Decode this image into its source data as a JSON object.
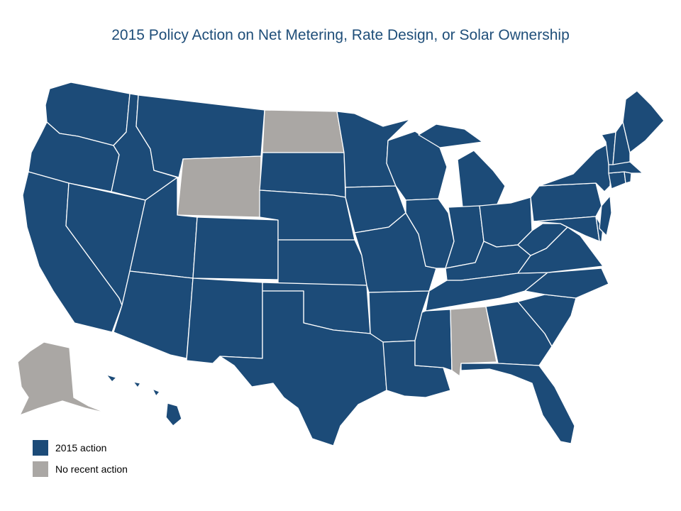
{
  "title": "2015 Policy Action on Net Metering, Rate Design, or Solar Ownership",
  "legend": {
    "items": [
      {
        "label": "2015 action",
        "color": "#1c4b78"
      },
      {
        "label": "No recent action",
        "color": "#aaa7a4"
      }
    ]
  },
  "states": [
    {
      "name": "Washington",
      "category": "2015 action"
    },
    {
      "name": "Oregon",
      "category": "2015 action"
    },
    {
      "name": "California",
      "category": "2015 action"
    },
    {
      "name": "Nevada",
      "category": "2015 action"
    },
    {
      "name": "Idaho",
      "category": "2015 action"
    },
    {
      "name": "Montana",
      "category": "2015 action"
    },
    {
      "name": "Wyoming",
      "category": "No recent action"
    },
    {
      "name": "Utah",
      "category": "2015 action"
    },
    {
      "name": "Arizona",
      "category": "2015 action"
    },
    {
      "name": "Colorado",
      "category": "2015 action"
    },
    {
      "name": "New Mexico",
      "category": "2015 action"
    },
    {
      "name": "North Dakota",
      "category": "No recent action"
    },
    {
      "name": "South Dakota",
      "category": "2015 action"
    },
    {
      "name": "Nebraska",
      "category": "2015 action"
    },
    {
      "name": "Kansas",
      "category": "2015 action"
    },
    {
      "name": "Oklahoma",
      "category": "2015 action"
    },
    {
      "name": "Texas",
      "category": "2015 action"
    },
    {
      "name": "Minnesota",
      "category": "2015 action"
    },
    {
      "name": "Iowa",
      "category": "2015 action"
    },
    {
      "name": "Missouri",
      "category": "2015 action"
    },
    {
      "name": "Arkansas",
      "category": "2015 action"
    },
    {
      "name": "Louisiana",
      "category": "2015 action"
    },
    {
      "name": "Wisconsin",
      "category": "2015 action"
    },
    {
      "name": "Illinois",
      "category": "2015 action"
    },
    {
      "name": "Michigan",
      "category": "2015 action"
    },
    {
      "name": "Indiana",
      "category": "2015 action"
    },
    {
      "name": "Ohio",
      "category": "2015 action"
    },
    {
      "name": "Kentucky",
      "category": "2015 action"
    },
    {
      "name": "Tennessee",
      "category": "2015 action"
    },
    {
      "name": "Mississippi",
      "category": "2015 action"
    },
    {
      "name": "Alabama",
      "category": "No recent action"
    },
    {
      "name": "Georgia",
      "category": "2015 action"
    },
    {
      "name": "Florida",
      "category": "2015 action"
    },
    {
      "name": "South Carolina",
      "category": "2015 action"
    },
    {
      "name": "North Carolina",
      "category": "2015 action"
    },
    {
      "name": "Virginia",
      "category": "2015 action"
    },
    {
      "name": "West Virginia",
      "category": "2015 action"
    },
    {
      "name": "Pennsylvania",
      "category": "2015 action"
    },
    {
      "name": "New York",
      "category": "2015 action"
    },
    {
      "name": "Maryland",
      "category": "2015 action"
    },
    {
      "name": "Delaware",
      "category": "2015 action"
    },
    {
      "name": "New Jersey",
      "category": "2015 action"
    },
    {
      "name": "Connecticut",
      "category": "2015 action"
    },
    {
      "name": "Rhode Island",
      "category": "2015 action"
    },
    {
      "name": "Massachusetts",
      "category": "2015 action"
    },
    {
      "name": "Vermont",
      "category": "2015 action"
    },
    {
      "name": "New Hampshire",
      "category": "2015 action"
    },
    {
      "name": "Maine",
      "category": "2015 action"
    },
    {
      "name": "Alaska",
      "category": "No recent action"
    },
    {
      "name": "Hawaii",
      "category": "2015 action"
    }
  ]
}
